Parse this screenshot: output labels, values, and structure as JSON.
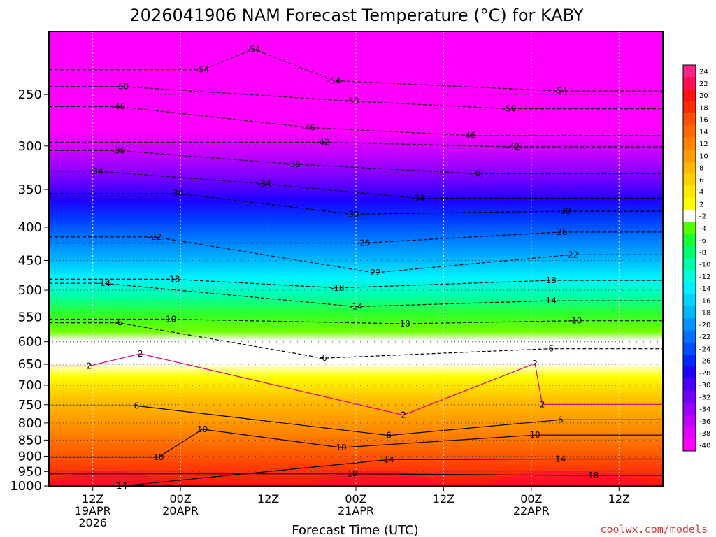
{
  "chart_data": {
    "type": "heatmap",
    "title": "2026041906 NAM Forecast Temperature (°C) for KABY",
    "xlabel": "Forecast Time (UTC)",
    "ylabel": "",
    "credit": "coolwx.com/models",
    "y_axis": {
      "scale": "pressure-log-inverted",
      "ylim": [
        1000,
        200
      ],
      "ticks": [
        1000,
        950,
        900,
        850,
        800,
        750,
        700,
        650,
        600,
        550,
        500,
        450,
        400,
        350,
        300,
        250
      ]
    },
    "x_axis": {
      "xlim_hours": [
        0,
        84
      ],
      "ticks": [
        {
          "hour": 6,
          "lines": [
            "12Z",
            "19APR",
            "2026"
          ]
        },
        {
          "hour": 18,
          "lines": [
            "00Z",
            "20APR"
          ]
        },
        {
          "hour": 30,
          "lines": [
            "12Z"
          ]
        },
        {
          "hour": 42,
          "lines": [
            "00Z",
            "21APR"
          ]
        },
        {
          "hour": 54,
          "lines": [
            "12Z"
          ]
        },
        {
          "hour": 66,
          "lines": [
            "00Z",
            "22APR"
          ]
        },
        {
          "hour": 78,
          "lines": [
            "12Z"
          ]
        }
      ]
    },
    "colorbar": {
      "labels": [
        "24",
        "22",
        "20",
        "18",
        "16",
        "14",
        "12",
        "10",
        "8",
        "6",
        "4",
        "2",
        "-2",
        "-4",
        "-6",
        "-8",
        "-10",
        "-12",
        "-14",
        "-16",
        "-18",
        "-20",
        "-22",
        "-24",
        "-26",
        "-28",
        "-30",
        "-32",
        "-34",
        "-36",
        "-38",
        "-40"
      ],
      "colors": [
        "#ff2488",
        "#ff0d55",
        "#ff1010",
        "#ff2a00",
        "#ff4f00",
        "#ff6a00",
        "#ff8400",
        "#ff9e00",
        "#ffb800",
        "#ffd000",
        "#ffea00",
        "#ffff00",
        "#ffffff",
        "#55ff00",
        "#1aff30",
        "#00ff70",
        "#00ffaa",
        "#00ffdd",
        "#00f0ff",
        "#00d6ff",
        "#00b8ff",
        "#0094ff",
        "#0070ff",
        "#004cff",
        "#0028ff",
        "#2000ff",
        "#4a00ff",
        "#7000ff",
        "#9800ff",
        "#c000ff",
        "#e200ff",
        "#ff00ff"
      ]
    },
    "contour_labels": [
      {
        "value": -54,
        "hour": 28,
        "p": 213
      },
      {
        "value": -54,
        "hour": 21,
        "p": 229
      },
      {
        "value": -54,
        "hour": 39,
        "p": 238
      },
      {
        "value": -54,
        "hour": 70,
        "p": 247
      },
      {
        "value": -50,
        "hour": 10,
        "p": 243
      },
      {
        "value": -50,
        "hour": 41.5,
        "p": 256
      },
      {
        "value": -50,
        "hour": 63,
        "p": 263
      },
      {
        "value": -46,
        "hour": 9.5,
        "p": 261
      },
      {
        "value": -46,
        "hour": 35.5,
        "p": 281
      },
      {
        "value": -46,
        "hour": 57.5,
        "p": 289
      },
      {
        "value": -42,
        "hour": 37.5,
        "p": 296
      },
      {
        "value": -42,
        "hour": 63.5,
        "p": 301
      },
      {
        "value": -38,
        "hour": 9.5,
        "p": 305
      },
      {
        "value": -38,
        "hour": 33.5,
        "p": 320
      },
      {
        "value": -38,
        "hour": 58.5,
        "p": 331
      },
      {
        "value": -34,
        "hour": 6.5,
        "p": 328
      },
      {
        "value": -34,
        "hour": 29.5,
        "p": 343
      },
      {
        "value": -34,
        "hour": 50.5,
        "p": 361
      },
      {
        "value": -30,
        "hour": 17.5,
        "p": 355
      },
      {
        "value": -30,
        "hour": 41.5,
        "p": 382
      },
      {
        "value": -30,
        "hour": 70.5,
        "p": 378
      },
      {
        "value": -26,
        "hour": 43,
        "p": 423
      },
      {
        "value": -26,
        "hour": 70,
        "p": 407
      },
      {
        "value": -22,
        "hour": 14.5,
        "p": 414
      },
      {
        "value": -22,
        "hour": 44.5,
        "p": 470
      },
      {
        "value": -22,
        "hour": 71.5,
        "p": 441
      },
      {
        "value": -18,
        "hour": 17,
        "p": 481
      },
      {
        "value": -18,
        "hour": 39.5,
        "p": 496
      },
      {
        "value": -18,
        "hour": 68.5,
        "p": 483
      },
      {
        "value": -14,
        "hour": 7.5,
        "p": 488
      },
      {
        "value": -14,
        "hour": 42,
        "p": 530
      },
      {
        "value": -14,
        "hour": 68.5,
        "p": 519
      },
      {
        "value": -10,
        "hour": 16.5,
        "p": 554
      },
      {
        "value": -10,
        "hour": 48.5,
        "p": 563
      },
      {
        "value": -10,
        "hour": 72,
        "p": 557
      },
      {
        "value": -6,
        "hour": 9.5,
        "p": 561
      },
      {
        "value": -6,
        "hour": 37.5,
        "p": 636
      },
      {
        "value": -6,
        "hour": 68.5,
        "p": 615
      },
      {
        "value": 2,
        "hour": 12.5,
        "p": 626
      },
      {
        "value": 2,
        "hour": 5.5,
        "p": 654
      },
      {
        "value": 2,
        "hour": 66.5,
        "p": 648
      },
      {
        "value": 2,
        "hour": 48.5,
        "p": 778
      },
      {
        "value": 2,
        "hour": 67.5,
        "p": 749
      },
      {
        "value": 6,
        "hour": 12,
        "p": 753
      },
      {
        "value": 6,
        "hour": 46.5,
        "p": 836
      },
      {
        "value": 6,
        "hour": 70,
        "p": 791
      },
      {
        "value": 10,
        "hour": 21,
        "p": 818
      },
      {
        "value": 10,
        "hour": 40,
        "p": 873
      },
      {
        "value": 10,
        "hour": 66.5,
        "p": 835
      },
      {
        "value": 10,
        "hour": 15,
        "p": 903
      },
      {
        "value": 14,
        "hour": 46.5,
        "p": 911
      },
      {
        "value": 14,
        "hour": 70,
        "p": 909
      },
      {
        "value": 14,
        "hour": 10,
        "p": 1000
      },
      {
        "value": 18,
        "hour": 41.5,
        "p": 958
      },
      {
        "value": 18,
        "hour": 74.5,
        "p": 964
      }
    ]
  }
}
